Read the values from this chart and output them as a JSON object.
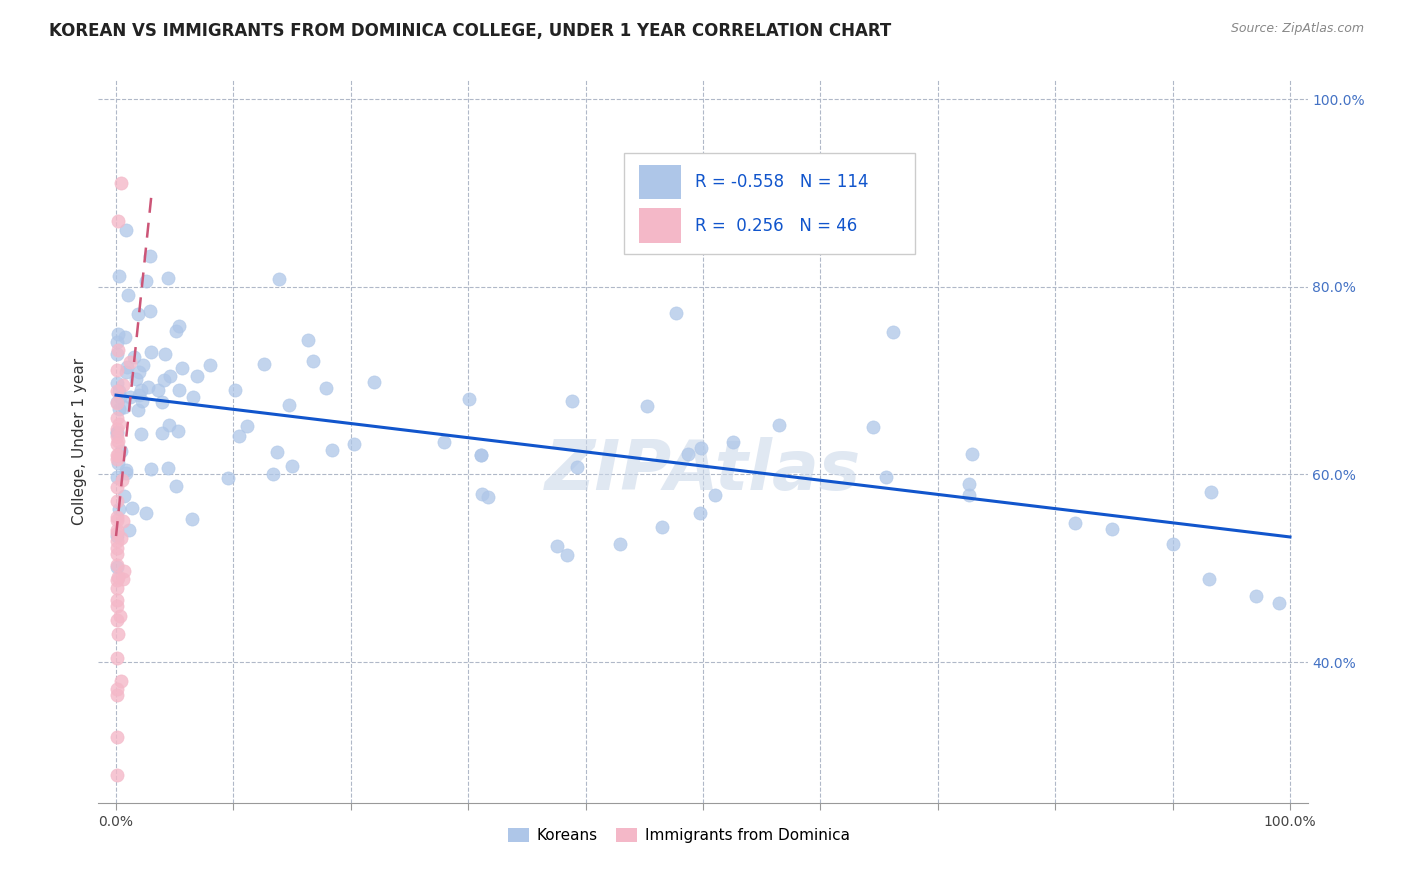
{
  "title": "KOREAN VS IMMIGRANTS FROM DOMINICA COLLEGE, UNDER 1 YEAR CORRELATION CHART",
  "source": "Source: ZipAtlas.com",
  "ylabel": "College, Under 1 year",
  "watermark": "ZIPAtlas",
  "korean_R": -0.558,
  "korean_N": 114,
  "dominica_R": 0.256,
  "dominica_N": 46,
  "blue_color": "#aec6e8",
  "pink_color": "#f4b8c8",
  "trend_blue": "#1155cc",
  "trend_pink": "#cc5577",
  "legend_label_korean": "Koreans",
  "legend_label_dominica": "Immigrants from Dominica",
  "xmin": 0.0,
  "xmax": 1.0,
  "ymin": 0.25,
  "ymax": 1.02,
  "ytick_positions": [
    0.4,
    0.6,
    0.8,
    1.0
  ],
  "ytick_labels": [
    "40.0%",
    "60.0%",
    "80.0%",
    "100.0%"
  ],
  "title_fontsize": 12,
  "source_fontsize": 9,
  "tick_fontsize": 10
}
